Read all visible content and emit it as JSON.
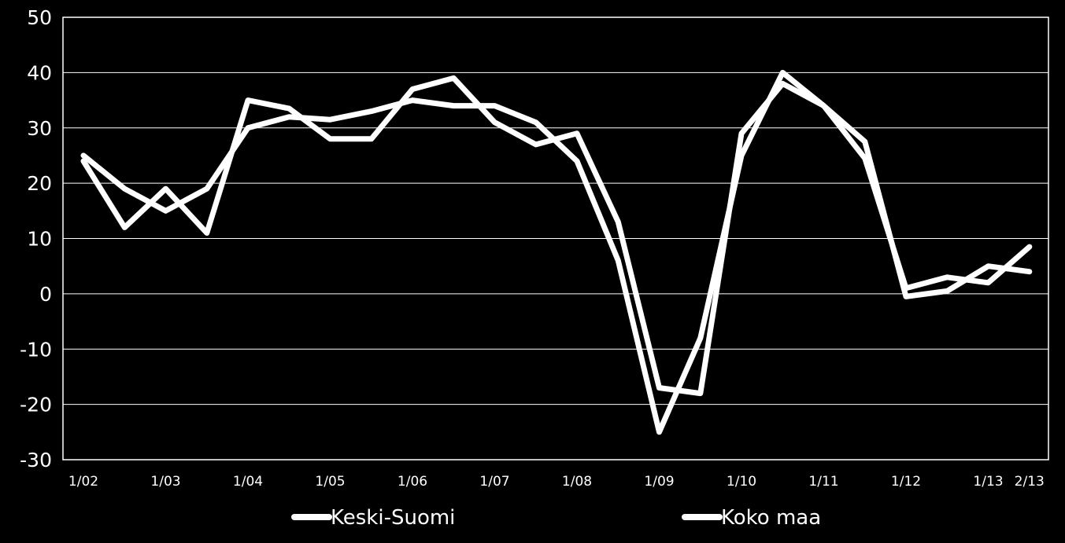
{
  "chart_data": {
    "type": "line",
    "title": "",
    "xlabel": "",
    "ylabel": "",
    "ylim": [
      -30,
      50
    ],
    "yticks": [
      -30,
      -20,
      -10,
      0,
      10,
      20,
      30,
      40,
      50
    ],
    "grid": "horizontal",
    "legend_position": "bottom",
    "x_tick_labels": [
      "1/02",
      "1/03",
      "1/04",
      "1/05",
      "1/06",
      "1/07",
      "1/08",
      "1/09",
      "1/10",
      "1/11",
      "1/12",
      "1/13",
      "2/13"
    ],
    "x": [
      "1/02",
      "3/02",
      "1/03",
      "3/03",
      "1/04",
      "3/04",
      "1/05",
      "3/05",
      "1/06",
      "3/06",
      "1/07",
      "3/07",
      "1/08",
      "3/08",
      "1/09",
      "3/09",
      "1/10",
      "3/10",
      "1/11",
      "3/11",
      "1/12",
      "3/12",
      "1/13",
      "2/13"
    ],
    "series": [
      {
        "name": "Keski-Suomi",
        "color": "#ffffff",
        "values": [
          24,
          12,
          19,
          11,
          35,
          33.5,
          28,
          28,
          37,
          39,
          31,
          27,
          29,
          13,
          -17,
          -18,
          29,
          38,
          34,
          24.5,
          1,
          3,
          2,
          8.5
        ]
      },
      {
        "name": "Koko maa",
        "color": "#ffffff",
        "values": [
          25,
          19,
          15,
          19,
          30,
          32,
          31.5,
          33,
          35,
          34,
          34,
          31,
          24,
          6,
          -25,
          -8,
          25,
          40,
          34,
          27.5,
          -0.5,
          0.5,
          5,
          4
        ]
      }
    ]
  }
}
